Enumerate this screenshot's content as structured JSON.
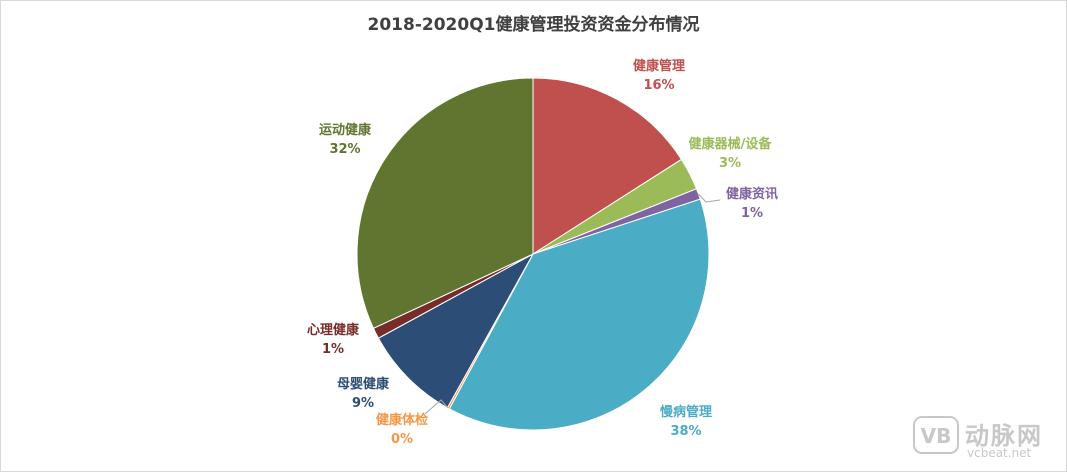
{
  "chart_data": {
    "type": "pie",
    "title": "2018-2020Q1健康管理投资资金分布情况",
    "slices": [
      {
        "label": "健康管理",
        "value": 16,
        "display": "16%",
        "color": "#c0504d"
      },
      {
        "label": "健康器械/设备",
        "value": 3,
        "display": "3%",
        "color": "#9bbb59"
      },
      {
        "label": "健康资讯",
        "value": 1,
        "display": "1%",
        "color": "#8064a2"
      },
      {
        "label": "慢病管理",
        "value": 38,
        "display": "38%",
        "color": "#4bacc6"
      },
      {
        "label": "健康体检",
        "value": 0.2,
        "display": "0%",
        "color": "#f79646"
      },
      {
        "label": "母婴健康",
        "value": 9,
        "display": "9%",
        "color": "#2c4d75"
      },
      {
        "label": "心理健康",
        "value": 1,
        "display": "1%",
        "color": "#772c2a"
      },
      {
        "label": "运动健康",
        "value": 32,
        "display": "32%",
        "color": "#5f7530"
      }
    ],
    "start_angle_deg": 0,
    "direction": "clockwise"
  },
  "watermark": {
    "logo_text": "VB",
    "name": "动脉网",
    "url": "vcbeat.net"
  }
}
